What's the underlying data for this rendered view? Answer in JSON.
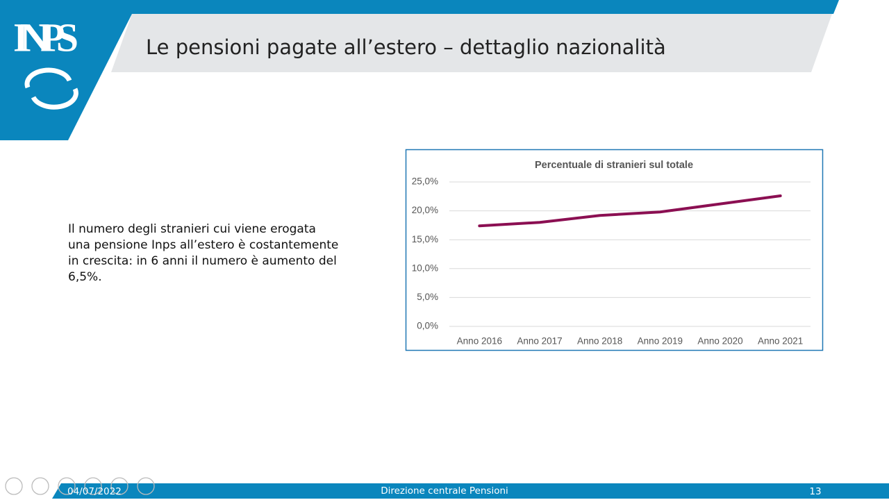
{
  "logo": {
    "text": "INPS"
  },
  "header": {
    "title": "Le pensioni pagate all’estero – dettaglio nazionalità"
  },
  "body": {
    "lines": [
      "Il numero degli stranieri cui viene erogata",
      "una pensione Inps all’estero è costantemente",
      "in crescita: in 6 anni il numero è aumento del",
      "6,5%."
    ]
  },
  "chart_data": {
    "type": "line",
    "title": "Percentuale di stranieri sul totale",
    "categories": [
      "Anno 2016",
      "Anno 2017",
      "Anno 2018",
      "Anno 2019",
      "Anno 2020",
      "Anno 2021"
    ],
    "values": [
      17.4,
      18.0,
      19.2,
      19.8,
      21.2,
      22.6
    ],
    "color": "#8b0f52",
    "ylim": [
      0,
      25
    ],
    "yticks": [
      {
        "value": 0,
        "label": "0,0%"
      },
      {
        "value": 5,
        "label": "5,0%"
      },
      {
        "value": 10,
        "label": "10,0%"
      },
      {
        "value": 15,
        "label": "15,0%"
      },
      {
        "value": 20,
        "label": "20,0%"
      },
      {
        "value": 25,
        "label": "25,0%"
      }
    ],
    "grid": true
  },
  "footer": {
    "date": "04/07/2022",
    "center": "Direzione centrale Pensioni",
    "page": "13"
  }
}
